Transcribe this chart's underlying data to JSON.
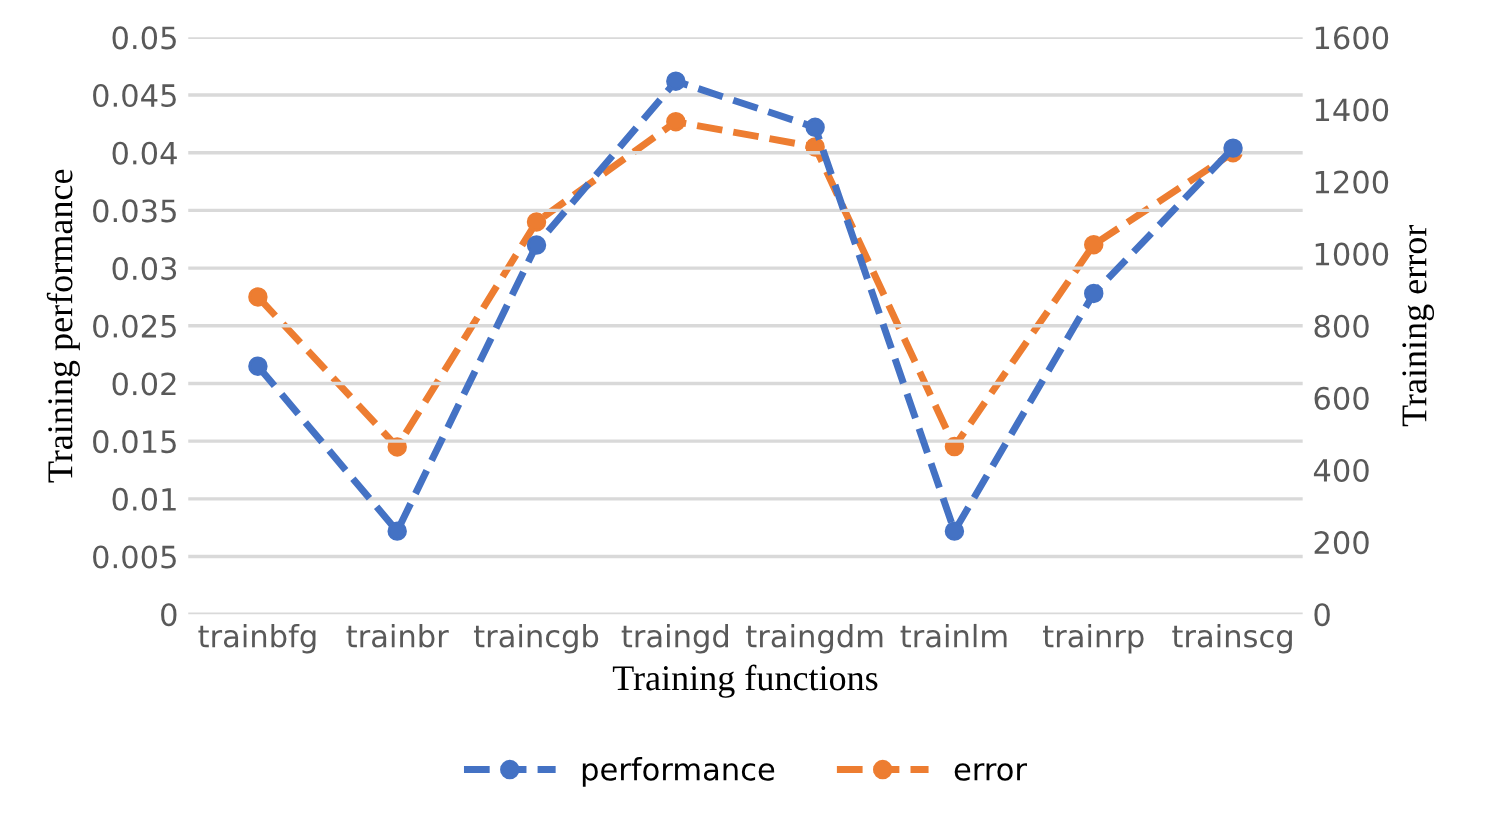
{
  "chart_data": {
    "type": "line",
    "xlabel": "Training functions",
    "ylabel": "Training performance",
    "y2label": "Training error",
    "categories": [
      "trainbfg",
      "trainbr",
      "traincgb",
      "traingd",
      "traingdm",
      "trainlm",
      "trainrp",
      "trainscg"
    ],
    "series": [
      {
        "name": "performance",
        "color": "#4472c4",
        "values": [
          0.0215,
          0.0072,
          0.032,
          0.0462,
          0.0422,
          0.0072,
          0.0278,
          0.0404
        ]
      },
      {
        "name": "error",
        "color": "#ed7d31",
        "axis": "y2",
        "values": [
          880,
          464,
          1088,
          1366,
          1296,
          465,
          1025,
          1280
        ]
      }
    ],
    "ylim": [
      0,
      0.05
    ],
    "yticks": [
      0,
      0.005,
      0.01,
      0.015,
      0.02,
      0.025,
      0.03,
      0.035,
      0.04,
      0.045,
      0.05
    ],
    "y2lim": [
      0,
      1600
    ],
    "y2ticks": [
      0,
      200,
      400,
      600,
      800,
      1000,
      1200,
      1400,
      1600
    ],
    "grid": "y",
    "legend": "bottom",
    "marker": "circle",
    "line_style": "dashed"
  }
}
